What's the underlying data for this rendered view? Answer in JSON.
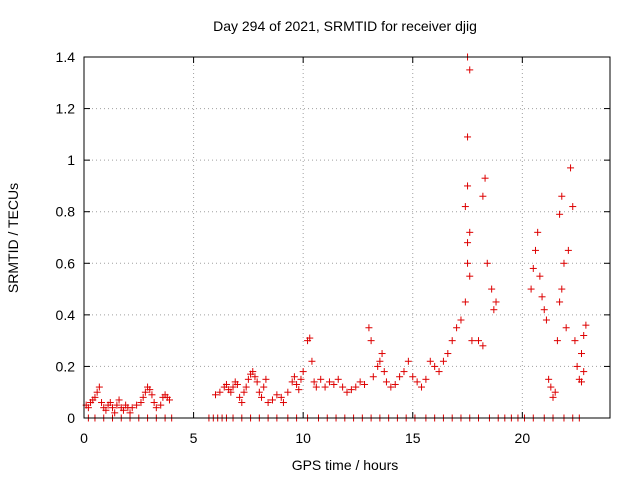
{
  "chart_data": {
    "type": "scatter",
    "title": "Day 294 of 2021, SRMTID for receiver djig",
    "xlabel": "GPS time / hours",
    "ylabel": "SRMTID / TECUs",
    "xlim": [
      0,
      24
    ],
    "ylim": [
      0,
      1.4
    ],
    "grid": true,
    "marker": "+",
    "color": "#dd0000",
    "x_ticks": [
      0,
      5,
      10,
      15,
      20
    ],
    "x_tick_labels": [
      "0",
      "5",
      "10",
      "15",
      "20"
    ],
    "y_ticks": [
      0,
      0.2,
      0.4,
      0.6,
      0.8,
      1.0,
      1.2,
      1.4
    ],
    "y_tick_labels": [
      "0",
      "0.2",
      "0.4",
      "0.6",
      "0.8",
      "1",
      "1.2",
      "1.4"
    ],
    "series": [
      {
        "name": "SRMTID",
        "points": [
          [
            0.1,
            0.05
          ],
          [
            0.2,
            0.04
          ],
          [
            0.3,
            0.06
          ],
          [
            0.4,
            0.07
          ],
          [
            0.5,
            0.08
          ],
          [
            0.6,
            0.1
          ],
          [
            0.7,
            0.12
          ],
          [
            0.8,
            0.06
          ],
          [
            0.9,
            0.04
          ],
          [
            1.0,
            0.03
          ],
          [
            1.1,
            0.05
          ],
          [
            1.2,
            0.06
          ],
          [
            1.3,
            0.04
          ],
          [
            1.4,
            0.02
          ],
          [
            1.5,
            0.05
          ],
          [
            1.6,
            0.07
          ],
          [
            1.7,
            0.04
          ],
          [
            1.8,
            0.03
          ],
          [
            1.9,
            0.05
          ],
          [
            2.0,
            0.04
          ],
          [
            2.1,
            0.02
          ],
          [
            2.2,
            0.04
          ],
          [
            2.4,
            0.05
          ],
          [
            2.6,
            0.06
          ],
          [
            2.7,
            0.08
          ],
          [
            2.8,
            0.1
          ],
          [
            2.9,
            0.12
          ],
          [
            3.0,
            0.11
          ],
          [
            3.1,
            0.09
          ],
          [
            3.2,
            0.06
          ],
          [
            3.3,
            0.04
          ],
          [
            3.5,
            0.05
          ],
          [
            3.6,
            0.08
          ],
          [
            3.7,
            0.09
          ],
          [
            3.8,
            0.08
          ],
          [
            3.9,
            0.07
          ],
          [
            6.0,
            0.09
          ],
          [
            6.2,
            0.1
          ],
          [
            6.4,
            0.12
          ],
          [
            6.5,
            0.13
          ],
          [
            6.6,
            0.11
          ],
          [
            6.7,
            0.1
          ],
          [
            6.8,
            0.12
          ],
          [
            6.9,
            0.14
          ],
          [
            7.0,
            0.13
          ],
          [
            7.1,
            0.08
          ],
          [
            7.2,
            0.06
          ],
          [
            7.3,
            0.1
          ],
          [
            7.4,
            0.12
          ],
          [
            7.5,
            0.15
          ],
          [
            7.6,
            0.17
          ],
          [
            7.7,
            0.18
          ],
          [
            7.8,
            0.16
          ],
          [
            7.9,
            0.14
          ],
          [
            8.0,
            0.1
          ],
          [
            8.1,
            0.08
          ],
          [
            8.2,
            0.12
          ],
          [
            8.3,
            0.15
          ],
          [
            8.4,
            0.06
          ],
          [
            8.6,
            0.07
          ],
          [
            8.8,
            0.09
          ],
          [
            9.0,
            0.08
          ],
          [
            9.1,
            0.06
          ],
          [
            9.3,
            0.1
          ],
          [
            9.5,
            0.14
          ],
          [
            9.6,
            0.16
          ],
          [
            9.7,
            0.13
          ],
          [
            9.8,
            0.11
          ],
          [
            9.9,
            0.15
          ],
          [
            10.0,
            0.18
          ],
          [
            10.2,
            0.3
          ],
          [
            10.3,
            0.31
          ],
          [
            10.4,
            0.22
          ],
          [
            10.5,
            0.14
          ],
          [
            10.6,
            0.12
          ],
          [
            10.8,
            0.15
          ],
          [
            11.0,
            0.12
          ],
          [
            11.2,
            0.14
          ],
          [
            11.4,
            0.13
          ],
          [
            11.6,
            0.15
          ],
          [
            11.8,
            0.12
          ],
          [
            12.0,
            0.1
          ],
          [
            12.2,
            0.11
          ],
          [
            12.4,
            0.12
          ],
          [
            12.6,
            0.14
          ],
          [
            12.8,
            0.13
          ],
          [
            13.0,
            0.35
          ],
          [
            13.1,
            0.3
          ],
          [
            13.2,
            0.16
          ],
          [
            13.4,
            0.2
          ],
          [
            13.5,
            0.22
          ],
          [
            13.6,
            0.25
          ],
          [
            13.7,
            0.18
          ],
          [
            13.8,
            0.14
          ],
          [
            14.0,
            0.12
          ],
          [
            14.2,
            0.13
          ],
          [
            14.4,
            0.16
          ],
          [
            14.6,
            0.18
          ],
          [
            14.8,
            0.22
          ],
          [
            15.0,
            0.16
          ],
          [
            15.2,
            0.14
          ],
          [
            15.4,
            0.12
          ],
          [
            15.6,
            0.15
          ],
          [
            15.8,
            0.22
          ],
          [
            16.0,
            0.2
          ],
          [
            16.2,
            0.18
          ],
          [
            16.4,
            0.22
          ],
          [
            16.6,
            0.25
          ],
          [
            16.8,
            0.3
          ],
          [
            17.0,
            0.35
          ],
          [
            17.2,
            0.38
          ],
          [
            17.4,
            0.45
          ],
          [
            17.5,
            0.6
          ],
          [
            17.6,
            0.55
          ],
          [
            17.7,
            0.3
          ],
          [
            17.4,
            0.82
          ],
          [
            17.5,
            1.4
          ],
          [
            17.6,
            1.35
          ],
          [
            17.5,
            1.09
          ],
          [
            17.5,
            0.9
          ],
          [
            17.6,
            0.72
          ],
          [
            17.5,
            0.68
          ],
          [
            18.0,
            0.3
          ],
          [
            18.2,
            0.28
          ],
          [
            18.3,
            0.93
          ],
          [
            18.2,
            0.86
          ],
          [
            18.4,
            0.6
          ],
          [
            18.6,
            0.5
          ],
          [
            18.8,
            0.45
          ],
          [
            18.7,
            0.42
          ],
          [
            20.4,
            0.5
          ],
          [
            20.5,
            0.58
          ],
          [
            20.6,
            0.65
          ],
          [
            20.7,
            0.72
          ],
          [
            20.8,
            0.55
          ],
          [
            20.9,
            0.47
          ],
          [
            21.0,
            0.42
          ],
          [
            21.1,
            0.38
          ],
          [
            21.2,
            0.15
          ],
          [
            21.3,
            0.12
          ],
          [
            21.4,
            0.08
          ],
          [
            21.5,
            0.1
          ],
          [
            21.6,
            0.3
          ],
          [
            21.7,
            0.45
          ],
          [
            21.8,
            0.5
          ],
          [
            21.9,
            0.6
          ],
          [
            21.8,
            0.86
          ],
          [
            21.7,
            0.79
          ],
          [
            22.0,
            0.35
          ],
          [
            22.1,
            0.65
          ],
          [
            22.2,
            0.97
          ],
          [
            22.3,
            0.82
          ],
          [
            22.4,
            0.3
          ],
          [
            22.5,
            0.2
          ],
          [
            22.6,
            0.15
          ],
          [
            22.7,
            0.25
          ],
          [
            22.8,
            0.32
          ],
          [
            22.9,
            0.36
          ],
          [
            22.7,
            0.14
          ],
          [
            22.8,
            0.18
          ]
        ]
      }
    ],
    "zero_times": [
      0.2,
      0.5,
      0.9,
      1.3,
      1.7,
      2.1,
      2.5,
      2.9,
      3.3,
      3.7,
      4.0,
      5.7,
      5.9,
      6.1,
      6.3,
      6.5,
      6.8,
      7.2,
      7.6,
      8.0,
      8.4,
      8.8,
      9.3,
      9.7,
      10.2,
      10.7,
      11.1,
      11.5,
      11.9,
      12.3,
      12.7,
      13.1,
      13.5,
      13.9,
      14.3,
      14.7,
      15.1,
      15.6,
      16.0,
      16.4,
      16.8,
      17.2,
      17.6,
      18.0,
      18.5,
      18.9,
      19.2,
      19.5,
      19.8,
      20.1,
      20.5,
      21.0,
      21.4,
      21.9,
      22.3,
      22.6
    ]
  }
}
